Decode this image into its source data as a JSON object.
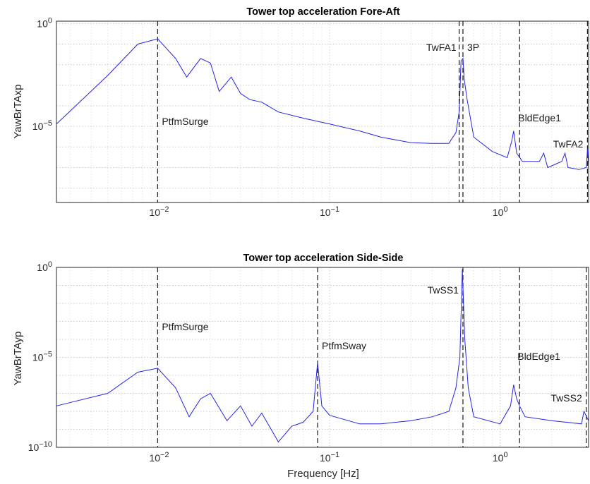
{
  "chart_data": [
    {
      "type": "line",
      "title": "Tower top acceleration Fore-Aft",
      "ylabel": "YawBrTAxp",
      "xlabel": "",
      "xscale": "log",
      "yscale": "log",
      "xlim": [
        0.0025,
        3.3
      ],
      "y_ticks": [
        {
          "value": 1,
          "label": "10^0"
        },
        {
          "value": 1e-05,
          "label": "10^-5"
        }
      ],
      "x_ticks": [
        {
          "value": 0.01,
          "label": "10^-2"
        },
        {
          "value": 0.1,
          "label": "10^-1"
        },
        {
          "value": 1,
          "label": "10^0"
        }
      ],
      "grid": true,
      "line_color": "#2424e6",
      "markers": [
        {
          "label": "PtfmSurge",
          "x": 0.0098
        },
        {
          "label": "TwFA1",
          "x": 0.575
        },
        {
          "label": "3P",
          "x": 0.605
        },
        {
          "label": "BldEdge1",
          "x": 1.3
        },
        {
          "label": "TwFA2",
          "x": 3.25
        }
      ],
      "x": [
        0.0025,
        0.005,
        0.0075,
        0.0098,
        0.0125,
        0.0145,
        0.0175,
        0.02,
        0.0225,
        0.0265,
        0.03,
        0.034,
        0.04,
        0.05,
        0.07,
        0.1,
        0.15,
        0.2,
        0.3,
        0.4,
        0.5,
        0.55,
        0.575,
        0.59,
        0.605,
        0.615,
        0.64,
        0.7,
        0.9,
        1.1,
        1.17,
        1.2,
        1.25,
        1.35,
        1.5,
        1.7,
        1.8,
        1.9,
        2.3,
        2.4,
        2.5,
        2.9,
        3.2,
        3.25,
        3.3
      ],
      "values": [
        1.3e-05,
        0.003,
        0.1,
        0.18,
        0.02,
        0.0025,
        0.02,
        0.012,
        0.0005,
        0.0025,
        0.0004,
        0.0002,
        0.00015,
        5e-05,
        2.5e-05,
        1.3e-05,
        6e-06,
        3e-06,
        1.6e-06,
        1.5e-06,
        1.5e-06,
        5e-06,
        5e-05,
        0.015,
        0.02,
        0.002,
        0.0002,
        3e-06,
        6e-07,
        3e-07,
        2e-06,
        6e-06,
        5e-07,
        2e-07,
        2e-07,
        2e-07,
        5e-07,
        1e-07,
        2e-07,
        5e-07,
        1e-07,
        8e-08,
        1e-07,
        8e-07,
        1e-07
      ]
    },
    {
      "type": "line",
      "title": "Tower top acceleration Side-Side",
      "ylabel": "YawBrTAyp",
      "xlabel": "Frequency [Hz]",
      "xscale": "log",
      "yscale": "log",
      "xlim": [
        0.0025,
        3.3
      ],
      "ylim": [
        1e-10,
        1
      ],
      "y_ticks": [
        {
          "value": 1,
          "label": "10^0"
        },
        {
          "value": 1e-05,
          "label": "10^-5"
        },
        {
          "value": 1e-10,
          "label": "10^-10"
        }
      ],
      "x_ticks": [
        {
          "value": 0.01,
          "label": "10^-2"
        },
        {
          "value": 0.1,
          "label": "10^-1"
        },
        {
          "value": 1,
          "label": "10^0"
        }
      ],
      "grid": true,
      "line_color": "#2424e6",
      "markers": [
        {
          "label": "PtfmSurge",
          "x": 0.0098
        },
        {
          "label": "PtfmSway",
          "x": 0.085
        },
        {
          "label": "TwSS1",
          "x": 0.605
        },
        {
          "label": "BldEdge1",
          "x": 1.3
        },
        {
          "label": "TwSS2",
          "x": 3.2
        }
      ],
      "x": [
        0.0025,
        0.005,
        0.0075,
        0.0098,
        0.0125,
        0.015,
        0.0175,
        0.02,
        0.025,
        0.03,
        0.035,
        0.04,
        0.05,
        0.06,
        0.07,
        0.08,
        0.085,
        0.09,
        0.1,
        0.15,
        0.2,
        0.3,
        0.4,
        0.5,
        0.55,
        0.58,
        0.6,
        0.62,
        0.65,
        0.7,
        1.0,
        1.15,
        1.2,
        1.25,
        1.3,
        1.4,
        2.0,
        3.0,
        3.1,
        3.3
      ],
      "values": [
        2e-08,
        1e-07,
        1.5e-06,
        2.5e-06,
        2e-07,
        5e-09,
        5e-08,
        1e-07,
        3e-09,
        2e-08,
        1.5e-09,
        8e-09,
        2e-10,
        1.5e-09,
        2.5e-09,
        1e-08,
        5e-06,
        2e-08,
        6e-09,
        2e-09,
        2e-09,
        3e-09,
        5e-09,
        1e-08,
        2e-07,
        1e-05,
        0.8,
        0.0001,
        2e-07,
        5e-09,
        2e-09,
        2e-08,
        3e-07,
        5e-08,
        2e-08,
        5e-09,
        3e-09,
        2e-09,
        1e-08,
        3e-09
      ]
    }
  ]
}
